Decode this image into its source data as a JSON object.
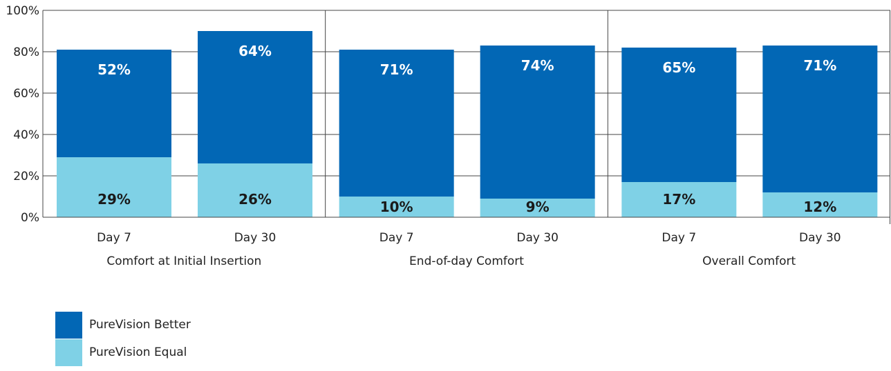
{
  "chart_data": {
    "type": "bar",
    "stacked": true,
    "y_ticks": [
      "0%",
      "20%",
      "40%",
      "60%",
      "80%",
      "100%"
    ],
    "ylim": [
      0,
      100
    ],
    "grid": true,
    "legend_position": "bottom-left",
    "groups": [
      {
        "label": "Comfort at Initial Insertion",
        "bars": [
          {
            "category": "Day 7",
            "equal": 29,
            "better": 52,
            "equal_label": "29%",
            "better_label": "52%"
          },
          {
            "category": "Day 30",
            "equal": 26,
            "better": 64,
            "equal_label": "26%",
            "better_label": "64%"
          }
        ]
      },
      {
        "label": "End-of-day Comfort",
        "bars": [
          {
            "category": "Day 7",
            "equal": 10,
            "better": 71,
            "equal_label": "10%",
            "better_label": "71%"
          },
          {
            "category": "Day 30",
            "equal": 9,
            "better": 74,
            "equal_label": "9%",
            "better_label": "74%"
          }
        ]
      },
      {
        "label": "Overall Comfort",
        "bars": [
          {
            "category": "Day 7",
            "equal": 17,
            "better": 65,
            "equal_label": "17%",
            "better_label": "65%"
          },
          {
            "category": "Day 30",
            "equal": 12,
            "better": 71,
            "equal_label": "12%",
            "better_label": "71%"
          }
        ]
      }
    ],
    "series": [
      {
        "key": "better",
        "name": "PureVision Better",
        "color": "#0267b5"
      },
      {
        "key": "equal",
        "name": "PureVision Equal",
        "color": "#7fd1e6"
      }
    ]
  }
}
